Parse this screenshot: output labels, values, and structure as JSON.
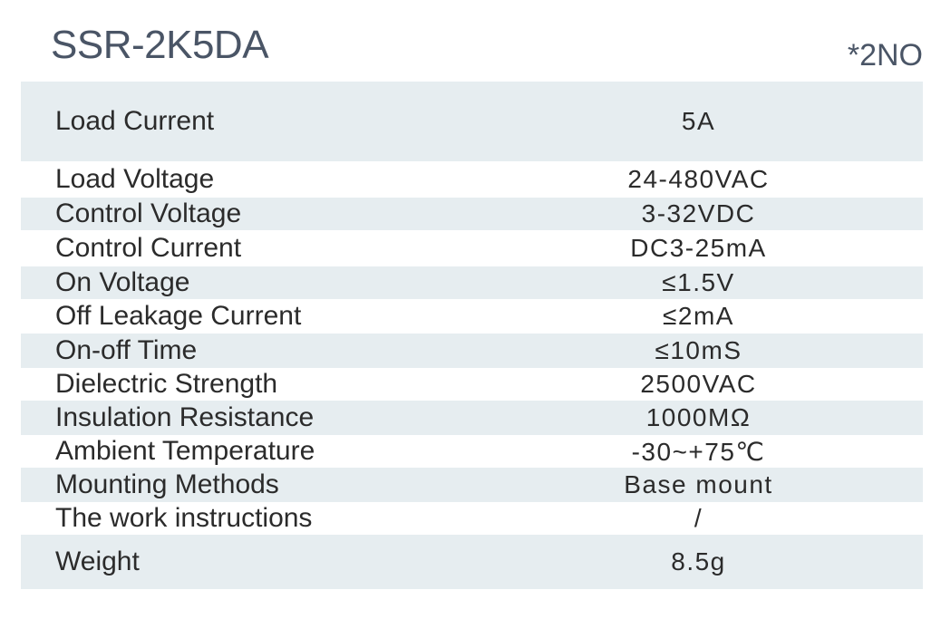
{
  "header": {
    "title": "SSR-2K5DA",
    "note": "*2NO"
  },
  "colors": {
    "shaded_row": "#e6edf0",
    "title_text": "#4a5566",
    "body_text": "#2b2b2b"
  },
  "specs": [
    {
      "label": "Load Current",
      "value": "5A"
    },
    {
      "label": "Load Voltage",
      "value": "24-480VAC"
    },
    {
      "label": "Control Voltage",
      "value": "3-32VDC"
    },
    {
      "label": "Control Current",
      "value": "DC3-25mA"
    },
    {
      "label": "On Voltage",
      "value": "≤1.5V"
    },
    {
      "label": "Off Leakage Current",
      "value": "≤2mA"
    },
    {
      "label": "On-off Time",
      "value": "≤10mS"
    },
    {
      "label": "Dielectric Strength",
      "value": "2500VAC"
    },
    {
      "label": "Insulation Resistance",
      "value": "1000MΩ"
    },
    {
      "label": "Ambient Temperature",
      "value": "-30~+75℃"
    },
    {
      "label": "Mounting Methods",
      "value": "Base mount"
    },
    {
      "label": "The work instructions",
      "value": "/"
    },
    {
      "label": "Weight",
      "value": "8.5g"
    }
  ]
}
